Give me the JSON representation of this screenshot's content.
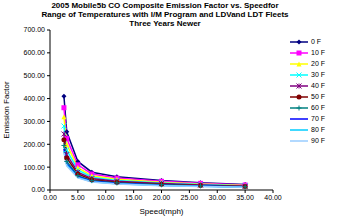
{
  "chart_data": {
    "type": "line",
    "title": "2005 Mobile5b CO Composite Emission Factor vs. Speedfor Range of Temperatures with I/M Program and LDVand LDT Fleets Three Years Newer",
    "x_label": "Speed(mph)",
    "y_label": "Emission Factor",
    "x": [
      2.5,
      3,
      5,
      7.5,
      12,
      20,
      27,
      35
    ],
    "xlim": [
      0,
      40
    ],
    "xticks": [
      {
        "value": 0,
        "label": "0.00"
      },
      {
        "value": 5,
        "label": "5.00"
      },
      {
        "value": 10,
        "label": "10.00"
      },
      {
        "value": 15,
        "label": "15.00"
      },
      {
        "value": 20,
        "label": "20.00"
      },
      {
        "value": 25,
        "label": "25.00"
      },
      {
        "value": 30,
        "label": "30.00"
      },
      {
        "value": 35,
        "label": "35.00"
      },
      {
        "value": 40,
        "label": "40.00"
      }
    ],
    "ylim": [
      0,
      700
    ],
    "yticks": [
      {
        "value": 0,
        "label": "0.00"
      },
      {
        "value": 100,
        "label": "100.00"
      },
      {
        "value": 200,
        "label": "200.00"
      },
      {
        "value": 300,
        "label": "300.00"
      },
      {
        "value": 400,
        "label": "400.00"
      },
      {
        "value": 500,
        "label": "500.00"
      },
      {
        "value": 600,
        "label": "600.00"
      },
      {
        "value": 700,
        "label": "700.00"
      }
    ],
    "grid": false,
    "legend": "right",
    "series": [
      {
        "name": "0 F",
        "color": "#000080",
        "marker": "diamond",
        "values": [
          410,
          255,
          125,
          78,
          58,
          42,
          32,
          24
        ]
      },
      {
        "name": "10 F",
        "color": "#FF00FF",
        "marker": "square",
        "values": [
          360,
          225,
          110,
          70,
          52,
          38,
          29,
          22
        ]
      },
      {
        "name": "20 F",
        "color": "#FFFF00",
        "marker": "triangle",
        "values": [
          320,
          200,
          98,
          62,
          47,
          34,
          26,
          20
        ]
      },
      {
        "name": "30 F",
        "color": "#00FFFF",
        "marker": "x",
        "values": [
          280,
          175,
          88,
          56,
          42,
          31,
          24,
          18
        ]
      },
      {
        "name": "40 F",
        "color": "#800080",
        "marker": "star",
        "values": [
          245,
          155,
          78,
          50,
          38,
          28,
          22,
          16
        ]
      },
      {
        "name": "50 F",
        "color": "#800000",
        "marker": "circle",
        "values": [
          220,
          140,
          70,
          45,
          34,
          25,
          20,
          15
        ]
      },
      {
        "name": "60 F",
        "color": "#008080",
        "marker": "plus",
        "values": [
          195,
          125,
          63,
          41,
          31,
          23,
          18,
          14
        ]
      },
      {
        "name": "70 F",
        "color": "#0000FF",
        "marker": "line",
        "values": [
          180,
          115,
          58,
          38,
          29,
          21,
          17,
          13
        ]
      },
      {
        "name": "80 F",
        "color": "#00CCFF",
        "marker": "line",
        "values": [
          170,
          110,
          55,
          36,
          27,
          20,
          16,
          12
        ]
      },
      {
        "name": "90 F",
        "color": "#99CCFF",
        "marker": "line",
        "values": [
          165,
          105,
          53,
          35,
          26,
          19,
          15,
          12
        ]
      }
    ]
  }
}
